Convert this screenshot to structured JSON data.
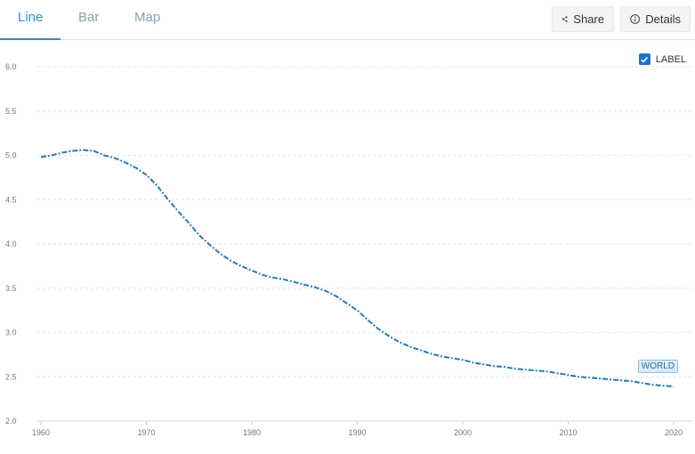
{
  "tabs": [
    {
      "label": "Line",
      "active": true
    },
    {
      "label": "Bar",
      "active": false
    },
    {
      "label": "Map",
      "active": false
    }
  ],
  "toolbar": {
    "share_label": "Share",
    "details_label": "Details"
  },
  "legend": {
    "label": "LABEL",
    "checked": true
  },
  "colors": {
    "accent": "#2d8fcf",
    "series": "#2a7ab3",
    "grid": "#e6e6e6"
  },
  "chart_data": {
    "type": "line",
    "title": "",
    "xlabel": "",
    "ylabel": "",
    "xlim": [
      1960,
      2020
    ],
    "ylim": [
      2.0,
      6.0
    ],
    "x_ticks": [
      1960,
      1970,
      1980,
      1990,
      2000,
      2010,
      2020
    ],
    "y_ticks": [
      "2.0",
      "2.5",
      "3.0",
      "3.5",
      "4.0",
      "4.5",
      "5.0",
      "5.5",
      "6.0"
    ],
    "grid": true,
    "legend_position": "top-right",
    "series": [
      {
        "name": "WORLD",
        "x": [
          1960,
          1961,
          1962,
          1963,
          1964,
          1965,
          1966,
          1967,
          1968,
          1969,
          1970,
          1971,
          1972,
          1973,
          1974,
          1975,
          1976,
          1977,
          1978,
          1979,
          1980,
          1981,
          1982,
          1983,
          1984,
          1985,
          1986,
          1987,
          1988,
          1989,
          1990,
          1991,
          1992,
          1993,
          1994,
          1995,
          1996,
          1997,
          1998,
          1999,
          2000,
          2001,
          2002,
          2003,
          2004,
          2005,
          2006,
          2007,
          2008,
          2009,
          2010,
          2011,
          2012,
          2013,
          2014,
          2015,
          2016,
          2017,
          2018,
          2019,
          2020
        ],
        "values": [
          4.98,
          5.0,
          5.03,
          5.05,
          5.06,
          5.05,
          5.0,
          4.97,
          4.92,
          4.86,
          4.78,
          4.66,
          4.51,
          4.37,
          4.24,
          4.1,
          3.99,
          3.89,
          3.81,
          3.75,
          3.7,
          3.65,
          3.62,
          3.6,
          3.57,
          3.54,
          3.51,
          3.47,
          3.41,
          3.33,
          3.25,
          3.14,
          3.04,
          2.96,
          2.89,
          2.84,
          2.8,
          2.76,
          2.73,
          2.71,
          2.69,
          2.66,
          2.64,
          2.62,
          2.61,
          2.59,
          2.58,
          2.57,
          2.56,
          2.54,
          2.52,
          2.5,
          2.49,
          2.48,
          2.47,
          2.46,
          2.45,
          2.43,
          2.41,
          2.4,
          2.39
        ]
      }
    ]
  }
}
